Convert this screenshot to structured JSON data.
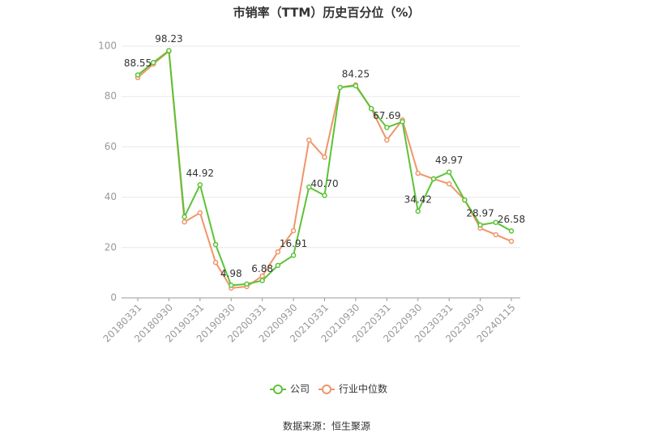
{
  "chart_data": {
    "type": "line",
    "title": "市销率（TTM）历史百分位（%）",
    "categories": [
      "20180331",
      null,
      "20180930",
      null,
      "20190331",
      null,
      "20190930",
      null,
      "20200331",
      null,
      "20200930",
      null,
      "20210331",
      null,
      "20210930",
      null,
      "20220331",
      null,
      "20220930",
      null,
      "20230331",
      null,
      "20230930",
      null,
      "20240115"
    ],
    "series": [
      {
        "name": "公司",
        "color": "#5cc337",
        "values": [
          88.55,
          93.5,
          98.23,
          32.2,
          44.92,
          21.2,
          4.98,
          5.5,
          6.88,
          12.9,
          16.91,
          44.0,
          40.7,
          83.6,
          84.25,
          75.2,
          67.69,
          70.0,
          34.42,
          47.3,
          49.97,
          38.9,
          28.97,
          30.0,
          26.58
        ],
        "value_labels": [
          "88.55",
          null,
          "98.23",
          null,
          "44.92",
          null,
          "4.98",
          null,
          "6.88",
          null,
          "16.91",
          null,
          "40.70",
          null,
          "84.25",
          null,
          "67.69",
          null,
          "34.42",
          null,
          "49.97",
          null,
          "28.97",
          null,
          "26.58"
        ]
      },
      {
        "name": "行业中位数",
        "color": "#f0956a",
        "values": [
          87.5,
          92.9,
          98.0,
          30.2,
          33.8,
          14.1,
          3.9,
          4.5,
          8.7,
          18.3,
          26.7,
          62.7,
          55.9,
          83.6,
          84.6,
          75.2,
          62.7,
          70.7,
          49.5,
          47.3,
          45.3,
          38.9,
          27.7,
          25.1,
          22.5
        ]
      }
    ],
    "ylim": [
      0,
      100
    ],
    "yticks": [
      0,
      20,
      40,
      60,
      80,
      100
    ],
    "grid": true,
    "source": "数据来源：恒生聚源"
  }
}
